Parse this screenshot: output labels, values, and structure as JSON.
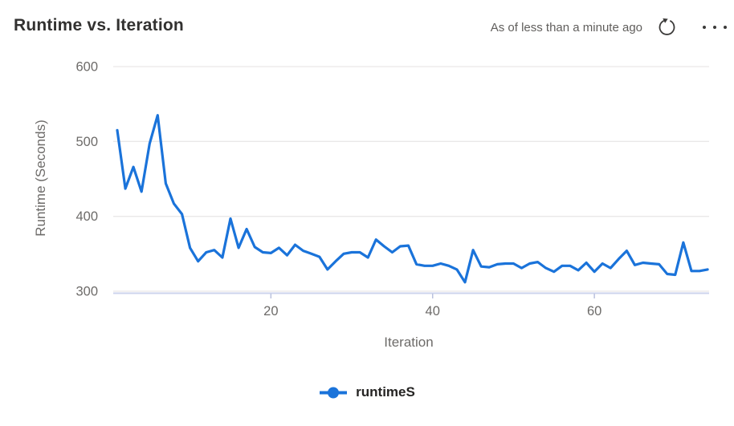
{
  "header": {
    "title": "Runtime vs. Iteration",
    "as_of_text": "As of less than a minute ago",
    "refresh_icon": "refresh-circular-arrow",
    "more_icon": "ellipsis-horizontal"
  },
  "colors": {
    "line": "#1a73da",
    "title_text": "#323130",
    "secondary_text": "#605e5c",
    "axis_text": "#6d6b69",
    "gridline": "#e9e8e8",
    "axis_line": "#ccd3ec",
    "tick_mark": "#b9c1de",
    "legend_text": "#252423",
    "icon": "#3b3a39"
  },
  "legend": {
    "label": "runtimeS",
    "marker": "line-with-dot"
  },
  "chart_data": {
    "type": "line",
    "title": "Runtime vs. Iteration",
    "xlabel": "Iteration",
    "ylabel": "Runtime (Seconds)",
    "x_ticks": [
      20,
      40,
      60
    ],
    "y_ticks": [
      300,
      400,
      500,
      600
    ],
    "xlim": [
      1,
      74
    ],
    "ylim": [
      300,
      600
    ],
    "grid": "horizontal",
    "legend_position": "bottom",
    "series": [
      {
        "name": "runtimeS",
        "color": "#1a73da",
        "x": [
          1,
          2,
          3,
          4,
          5,
          6,
          7,
          8,
          9,
          10,
          11,
          12,
          13,
          14,
          15,
          16,
          17,
          18,
          19,
          20,
          21,
          22,
          23,
          24,
          25,
          26,
          27,
          28,
          29,
          30,
          31,
          32,
          33,
          34,
          35,
          36,
          37,
          38,
          39,
          40,
          41,
          42,
          43,
          44,
          45,
          46,
          47,
          48,
          49,
          50,
          51,
          52,
          53,
          54,
          55,
          56,
          57,
          58,
          59,
          60,
          61,
          62,
          63,
          64,
          65,
          66,
          67,
          68,
          69,
          70,
          71,
          72,
          73,
          74
        ],
        "y": [
          515,
          437,
          466,
          433,
          497,
          535,
          444,
          417,
          403,
          358,
          340,
          352,
          355,
          345,
          397,
          358,
          383,
          359,
          352,
          351,
          358,
          348,
          362,
          354,
          350,
          346,
          329,
          340,
          350,
          352,
          352,
          345,
          369,
          360,
          352,
          360,
          361,
          336,
          334,
          334,
          337,
          334,
          329,
          312,
          355,
          333,
          332,
          336,
          337,
          337,
          331,
          337,
          339,
          331,
          326,
          334,
          334,
          328,
          338,
          326,
          337,
          331,
          343,
          354,
          335,
          338,
          337,
          336,
          323,
          322,
          365,
          327,
          327,
          329
        ]
      }
    ]
  }
}
